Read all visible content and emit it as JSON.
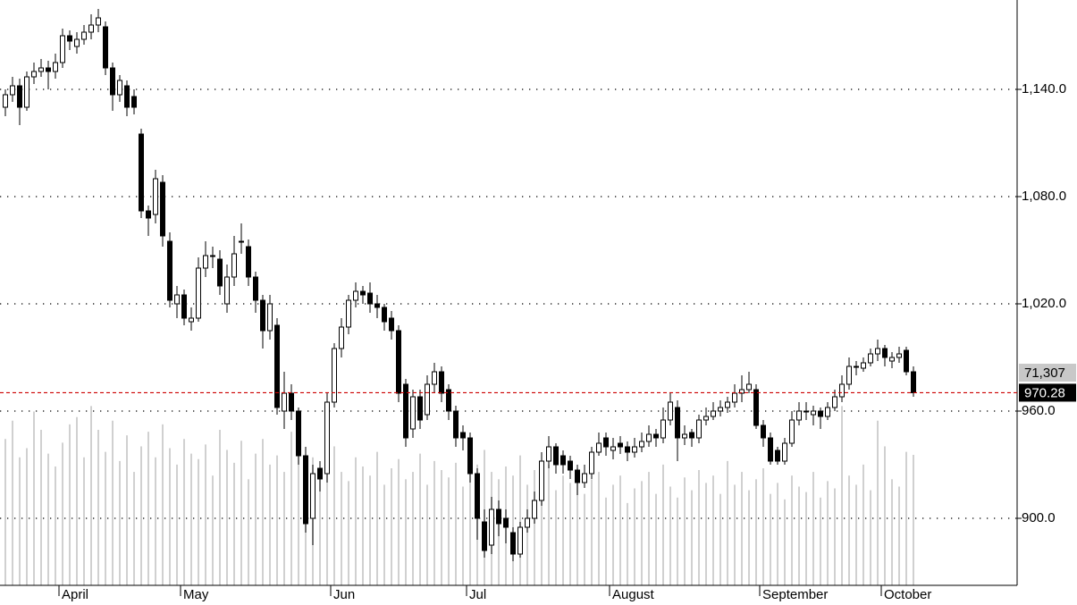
{
  "chart_data": {
    "type": "candlestick",
    "ylim": [
      862.5,
      1190
    ],
    "yticks": [
      {
        "value": 900,
        "label": "900.0"
      },
      {
        "value": 960,
        "label": "960.0"
      },
      {
        "value": 1020,
        "label": "1,020.0"
      },
      {
        "value": 1080,
        "label": "1,080.0"
      },
      {
        "value": 1140,
        "label": "1,140.0"
      }
    ],
    "grid": true,
    "up_color": "#ffffff",
    "down_color": "#000000",
    "volume_color": "#c0c0c0",
    "last_price_color": "#cc0000",
    "months": [
      {
        "label": "April",
        "index": 8
      },
      {
        "label": "May",
        "index": 25
      },
      {
        "label": "Jun",
        "index": 46
      },
      {
        "label": "Jul",
        "index": 65
      },
      {
        "label": "August",
        "index": 85
      },
      {
        "label": "September",
        "index": 106
      },
      {
        "label": "October",
        "index": 123
      }
    ],
    "candles": [
      [
        1130,
        1140,
        1125,
        1137
      ],
      [
        1137,
        1147,
        1133,
        1142
      ],
      [
        1142,
        1146,
        1120,
        1130
      ],
      [
        1130,
        1150,
        1128,
        1147
      ],
      [
        1147,
        1155,
        1143,
        1150
      ],
      [
        1150,
        1157,
        1147,
        1152
      ],
      [
        1152,
        1156,
        1140,
        1150
      ],
      [
        1150,
        1160,
        1146,
        1155
      ],
      [
        1155,
        1174,
        1152,
        1170
      ],
      [
        1170,
        1173,
        1162,
        1167
      ],
      [
        1164,
        1172,
        1160,
        1168
      ],
      [
        1168,
        1176,
        1165,
        1172
      ],
      [
        1172,
        1182,
        1168,
        1176
      ],
      [
        1176,
        1185,
        1172,
        1180
      ],
      [
        1175,
        1178,
        1148,
        1152
      ],
      [
        1152,
        1155,
        1128,
        1137
      ],
      [
        1137,
        1148,
        1133,
        1145
      ],
      [
        1142,
        1145,
        1125,
        1130
      ],
      [
        1136,
        1140,
        1126,
        1130
      ],
      [
        1115,
        1118,
        1068,
        1072
      ],
      [
        1072,
        1075,
        1058,
        1068
      ],
      [
        1070,
        1095,
        1065,
        1090
      ],
      [
        1088,
        1092,
        1052,
        1058
      ],
      [
        1055,
        1060,
        1018,
        1022
      ],
      [
        1020,
        1030,
        1012,
        1025
      ],
      [
        1025,
        1028,
        1008,
        1012
      ],
      [
        1010,
        1018,
        1005,
        1012
      ],
      [
        1012,
        1046,
        1010,
        1040
      ],
      [
        1040,
        1055,
        1035,
        1047
      ],
      [
        1047,
        1052,
        1040,
        1047
      ],
      [
        1045,
        1050,
        1025,
        1030
      ],
      [
        1020,
        1042,
        1015,
        1035
      ],
      [
        1035,
        1058,
        1030,
        1048
      ],
      [
        1055,
        1065,
        1048,
        1055
      ],
      [
        1052,
        1056,
        1030,
        1035
      ],
      [
        1035,
        1038,
        1015,
        1022
      ],
      [
        1022,
        1025,
        995,
        1005
      ],
      [
        1005,
        1025,
        1000,
        1020
      ],
      [
        1008,
        1012,
        958,
        962
      ],
      [
        960,
        982,
        950,
        970
      ],
      [
        970,
        975,
        955,
        960
      ],
      [
        960,
        962,
        930,
        935
      ],
      [
        935,
        940,
        892,
        897
      ],
      [
        900,
        930,
        885,
        925
      ],
      [
        928,
        932,
        915,
        922
      ],
      [
        925,
        970,
        920,
        965
      ],
      [
        965,
        998,
        962,
        995
      ],
      [
        995,
        1012,
        990,
        1007
      ],
      [
        1007,
        1025,
        1003,
        1022
      ],
      [
        1022,
        1032,
        1018,
        1027
      ],
      [
        1027,
        1030,
        1020,
        1025
      ],
      [
        1026,
        1032,
        1015,
        1020
      ],
      [
        1020,
        1025,
        1012,
        1018
      ],
      [
        1018,
        1020,
        1005,
        1010
      ],
      [
        1012,
        1016,
        1000,
        1005
      ],
      [
        1005,
        1008,
        965,
        970
      ],
      [
        975,
        978,
        940,
        945
      ],
      [
        950,
        972,
        945,
        968
      ],
      [
        968,
        972,
        950,
        955
      ],
      [
        958,
        980,
        955,
        975
      ],
      [
        975,
        987,
        970,
        982
      ],
      [
        982,
        985,
        965,
        970
      ],
      [
        972,
        975,
        955,
        960
      ],
      [
        960,
        963,
        940,
        945
      ],
      [
        948,
        952,
        938,
        945
      ],
      [
        945,
        948,
        920,
        925
      ],
      [
        925,
        928,
        888,
        900
      ],
      [
        898,
        905,
        878,
        882
      ],
      [
        885,
        912,
        880,
        905
      ],
      [
        905,
        910,
        890,
        897
      ],
      [
        900,
        905,
        886,
        895
      ],
      [
        892,
        895,
        876,
        880
      ],
      [
        880,
        898,
        878,
        895
      ],
      [
        895,
        905,
        892,
        900
      ],
      [
        900,
        915,
        897,
        910
      ],
      [
        910,
        937,
        907,
        932
      ],
      [
        932,
        946,
        928,
        940
      ],
      [
        940,
        942,
        925,
        930
      ],
      [
        935,
        938,
        925,
        930
      ],
      [
        932,
        935,
        922,
        927
      ],
      [
        927,
        930,
        913,
        920
      ],
      [
        920,
        930,
        917,
        925
      ],
      [
        925,
        940,
        922,
        937
      ],
      [
        937,
        948,
        935,
        942
      ],
      [
        945,
        948,
        935,
        940
      ],
      [
        938,
        945,
        933,
        940
      ],
      [
        942,
        946,
        936,
        940
      ],
      [
        940,
        943,
        932,
        937
      ],
      [
        937,
        945,
        934,
        940
      ],
      [
        940,
        948,
        937,
        943
      ],
      [
        943,
        952,
        940,
        947
      ],
      [
        947,
        950,
        940,
        945
      ],
      [
        945,
        962,
        942,
        955
      ],
      [
        955,
        970,
        952,
        965
      ],
      [
        962,
        966,
        932,
        945
      ],
      [
        945,
        952,
        941,
        947
      ],
      [
        948,
        950,
        940,
        945
      ],
      [
        945,
        958,
        942,
        955
      ],
      [
        955,
        962,
        952,
        957
      ],
      [
        957,
        965,
        955,
        960
      ],
      [
        960,
        966,
        957,
        962
      ],
      [
        962,
        968,
        959,
        965
      ],
      [
        965,
        975,
        962,
        970
      ],
      [
        970,
        980,
        965,
        972
      ],
      [
        972,
        982,
        970,
        975
      ],
      [
        972,
        975,
        950,
        952
      ],
      [
        952,
        955,
        940,
        945
      ],
      [
        945,
        948,
        930,
        932
      ],
      [
        938,
        940,
        930,
        932
      ],
      [
        932,
        945,
        930,
        942
      ],
      [
        942,
        960,
        940,
        955
      ],
      [
        955,
        965,
        952,
        960
      ],
      [
        960,
        965,
        955,
        960
      ],
      [
        958,
        963,
        952,
        960
      ],
      [
        960,
        962,
        950,
        957
      ],
      [
        957,
        965,
        955,
        962
      ],
      [
        962,
        972,
        960,
        968
      ],
      [
        968,
        980,
        965,
        975
      ],
      [
        975,
        990,
        972,
        985
      ],
      [
        985,
        988,
        980,
        985
      ],
      [
        984,
        990,
        982,
        987
      ],
      [
        987,
        995,
        985,
        992
      ],
      [
        992,
        1000,
        988,
        995
      ],
      [
        995,
        997,
        985,
        990
      ],
      [
        988,
        993,
        984,
        990
      ],
      [
        990,
        996,
        987,
        992
      ],
      [
        994,
        996,
        980,
        982
      ],
      [
        982,
        985,
        968,
        970.28
      ]
    ],
    "volume": [
      80000,
      90000,
      70000,
      75000,
      95000,
      85000,
      72000,
      65000,
      78000,
      88000,
      92000,
      70000,
      98000,
      85000,
      73000,
      90000,
      68000,
      82000,
      62000,
      76000,
      84000,
      70000,
      88000,
      75000,
      66000,
      80000,
      72000,
      69000,
      77000,
      60000,
      85000,
      74000,
      67000,
      79000,
      58000,
      72000,
      80000,
      66000,
      71000,
      62000,
      84000,
      75000,
      64000,
      70000,
      58000,
      68000,
      76000,
      62000,
      57000,
      70000,
      65000,
      60000,
      73000,
      55000,
      64000,
      69000,
      58000,
      62000,
      72000,
      55000,
      68000,
      63000,
      59000,
      67000,
      54000,
      70000,
      66000,
      74000,
      62000,
      58000,
      65000,
      60000,
      71000,
      55000,
      63000,
      57000,
      66000,
      52000,
      60000,
      56000,
      64000,
      50000,
      58000,
      62000,
      48000,
      55000,
      60000,
      45000,
      53000,
      57000,
      62000,
      50000,
      66000,
      54000,
      48000,
      59000,
      52000,
      63000,
      56000,
      60000,
      50000,
      68000,
      55000,
      62000,
      52000,
      58000,
      64000,
      50000,
      56000,
      47000,
      60000,
      54000,
      51000,
      62000,
      48000,
      57000,
      53000,
      98000,
      60000,
      55000,
      66000,
      52000,
      90000,
      76000,
      58000,
      54000,
      73000,
      71307
    ],
    "vlim": [
      0,
      320000
    ],
    "volume_label": "71,307"
  }
}
